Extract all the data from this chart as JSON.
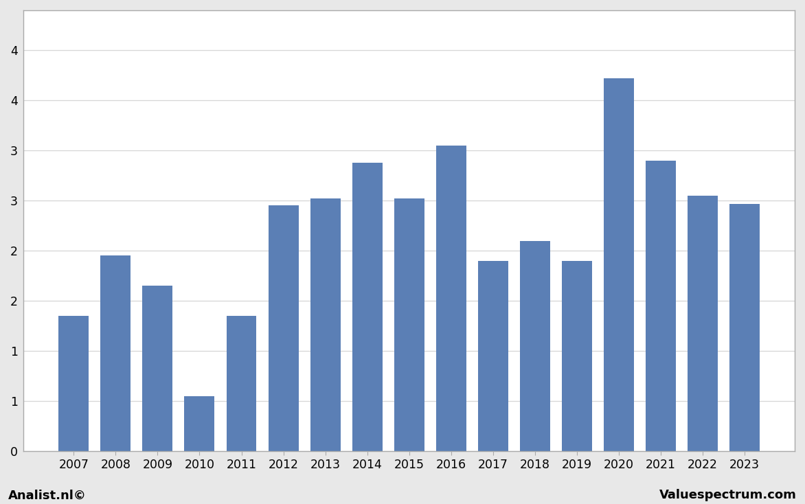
{
  "years": [
    2007,
    2008,
    2009,
    2010,
    2011,
    2012,
    2013,
    2014,
    2015,
    2016,
    2017,
    2018,
    2019,
    2020,
    2021,
    2022,
    2023
  ],
  "values": [
    1.35,
    1.95,
    1.65,
    0.55,
    1.35,
    2.45,
    2.52,
    2.88,
    2.52,
    3.05,
    1.9,
    2.1,
    1.9,
    3.72,
    2.9,
    2.55,
    2.47
  ],
  "bar_color": "#5b7fb5",
  "background_color": "#e8e8e8",
  "plot_background_color": "#ffffff",
  "ylim": [
    0,
    4.4
  ],
  "ytick_positions": [
    0,
    0.5,
    1.0,
    1.5,
    2.0,
    2.5,
    3.0,
    3.5,
    4.0
  ],
  "ytick_labels": [
    "0",
    "1",
    "1",
    "2",
    "2",
    "3",
    "3",
    "4",
    "4"
  ],
  "footer_left": "Analist.nl©",
  "footer_right": "Valuespectrum.com",
  "grid_color": "#cccccc",
  "grid_alpha": 0.8
}
